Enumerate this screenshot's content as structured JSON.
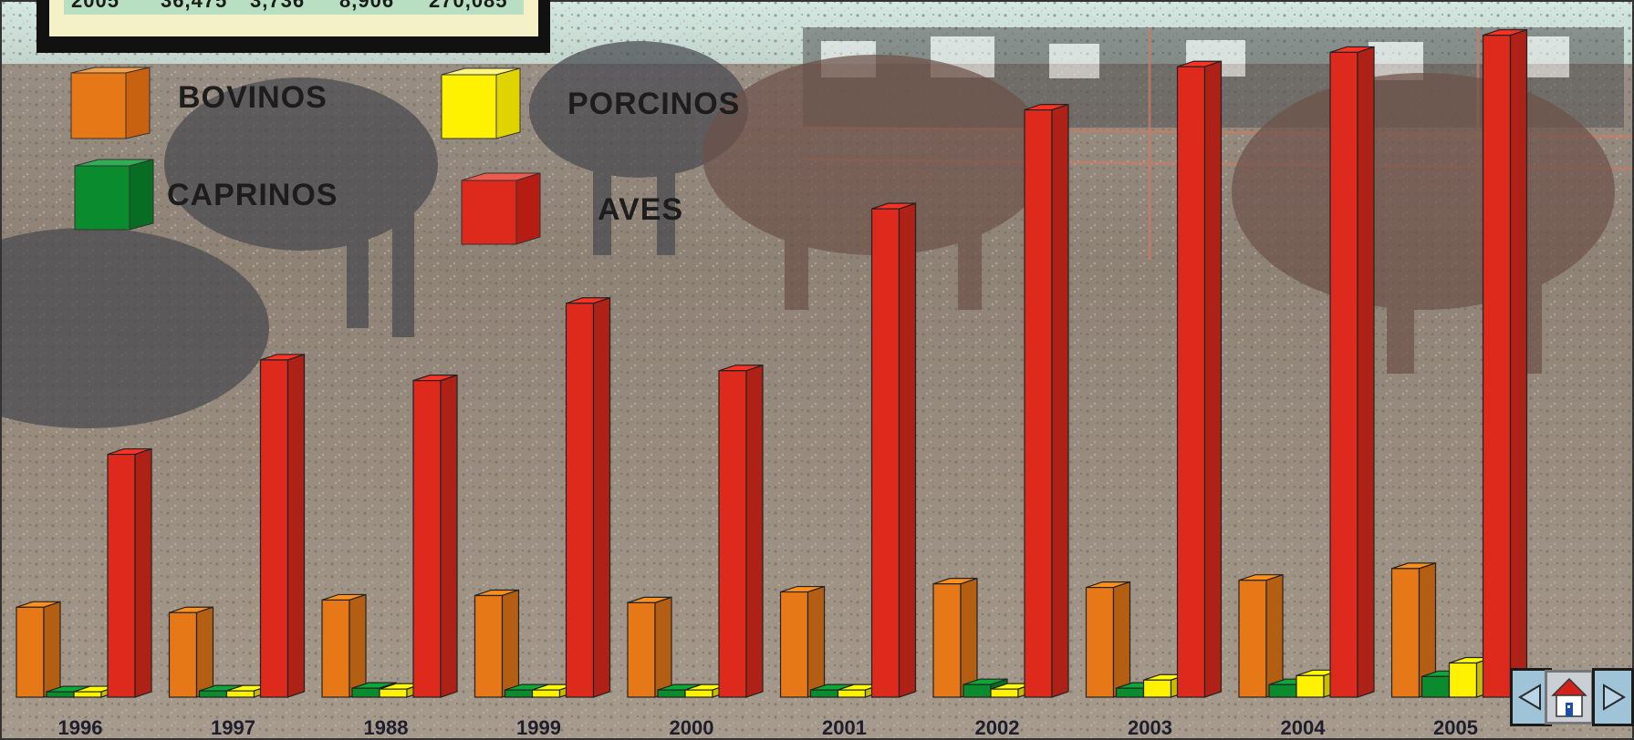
{
  "table_row_fragment": [
    "2005",
    "36,475",
    "3,736",
    "8,906",
    "270,085"
  ],
  "legend": [
    {
      "label": "BOVINOS",
      "color": "#e67817"
    },
    {
      "label": "PORCINOS",
      "color": "#fff200"
    },
    {
      "label": "CAPRINOS",
      "color": "#0a8c2e"
    },
    {
      "label": "AVES",
      "color": "#de2a1d"
    }
  ],
  "navigation": {
    "prev_icon": "triangle-left-icon",
    "home_icon": "house-icon",
    "next_icon": "triangle-right-icon"
  },
  "chart_data": {
    "type": "bar",
    "style": "3d-clustered",
    "categories": [
      "1996",
      "1997",
      "1988",
      "1999",
      "2000",
      "2001",
      "2002",
      "2003",
      "2004",
      "2005"
    ],
    "series": [
      {
        "name": "BOVINOS",
        "color": "#e67817",
        "values": [
          100,
          94,
          108,
          113,
          105,
          117,
          126,
          122,
          130,
          143
        ]
      },
      {
        "name": "CAPRINOS",
        "color": "#0a8c2e",
        "values": [
          6,
          7,
          10,
          8,
          8,
          8,
          14,
          10,
          14,
          23
        ]
      },
      {
        "name": "PORCINOS",
        "color": "#fff200",
        "values": [
          6,
          7,
          9,
          8,
          8,
          8,
          9,
          19,
          24,
          38
        ]
      },
      {
        "name": "AVES",
        "color": "#de2a1d",
        "values": [
          270,
          375,
          352,
          438,
          363,
          543,
          653,
          701,
          717,
          736
        ]
      }
    ],
    "xlabel": "",
    "ylabel": "",
    "title": "",
    "ylim": [
      0,
      760
    ],
    "grid": false,
    "legend_position": "top-left"
  }
}
